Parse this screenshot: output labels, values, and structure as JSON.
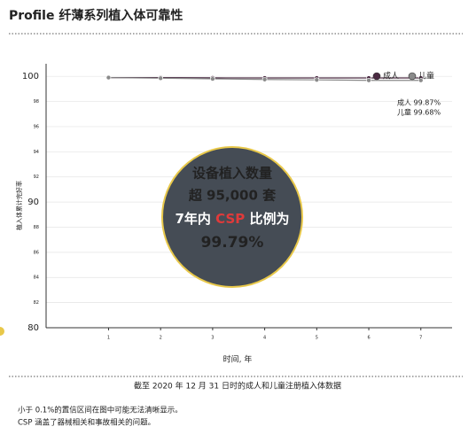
{
  "chart_data": {
    "type": "line",
    "title": "Profile 纤薄系列植入体可靠性",
    "x_label": "时间, 年",
    "y_label": "植入体累计完好率",
    "x": [
      1,
      2,
      3,
      4,
      5,
      6,
      7
    ],
    "xlim": [
      -0.2,
      7.6
    ],
    "xticks": [
      1,
      2,
      3,
      4,
      5,
      6,
      7
    ],
    "ylim": [
      80,
      101
    ],
    "yticks": [
      80,
      82,
      84,
      86,
      88,
      90,
      92,
      94,
      96,
      98,
      100
    ],
    "grid": true,
    "legend": "top-right",
    "series": [
      {
        "name": "成人",
        "color": "#4a2a42",
        "values": [
          99.9,
          99.9,
          99.88,
          99.87,
          99.87,
          99.87,
          99.87
        ]
      },
      {
        "name": "儿童",
        "color": "#8a8a8a",
        "values": [
          99.9,
          99.85,
          99.8,
          99.75,
          99.72,
          99.68,
          99.68
        ]
      }
    ],
    "annotations": [
      "成人 99.87%",
      "儿童 99.68%"
    ],
    "callout": {
      "line1": "设备植入数量",
      "line2": "超 95,000 套",
      "line3": [
        "7年内 ",
        "CSP",
        " 比例为"
      ],
      "highlight": "99.79%"
    },
    "caption": "截至 2020 年 12 月 31 日时的成人和儿童注册植入体数据",
    "notes": [
      "小于 0.1%的置信区间在图中可能无法清晰显示。",
      "CSP 涵盖了器械相关和事故相关的问题。"
    ]
  }
}
